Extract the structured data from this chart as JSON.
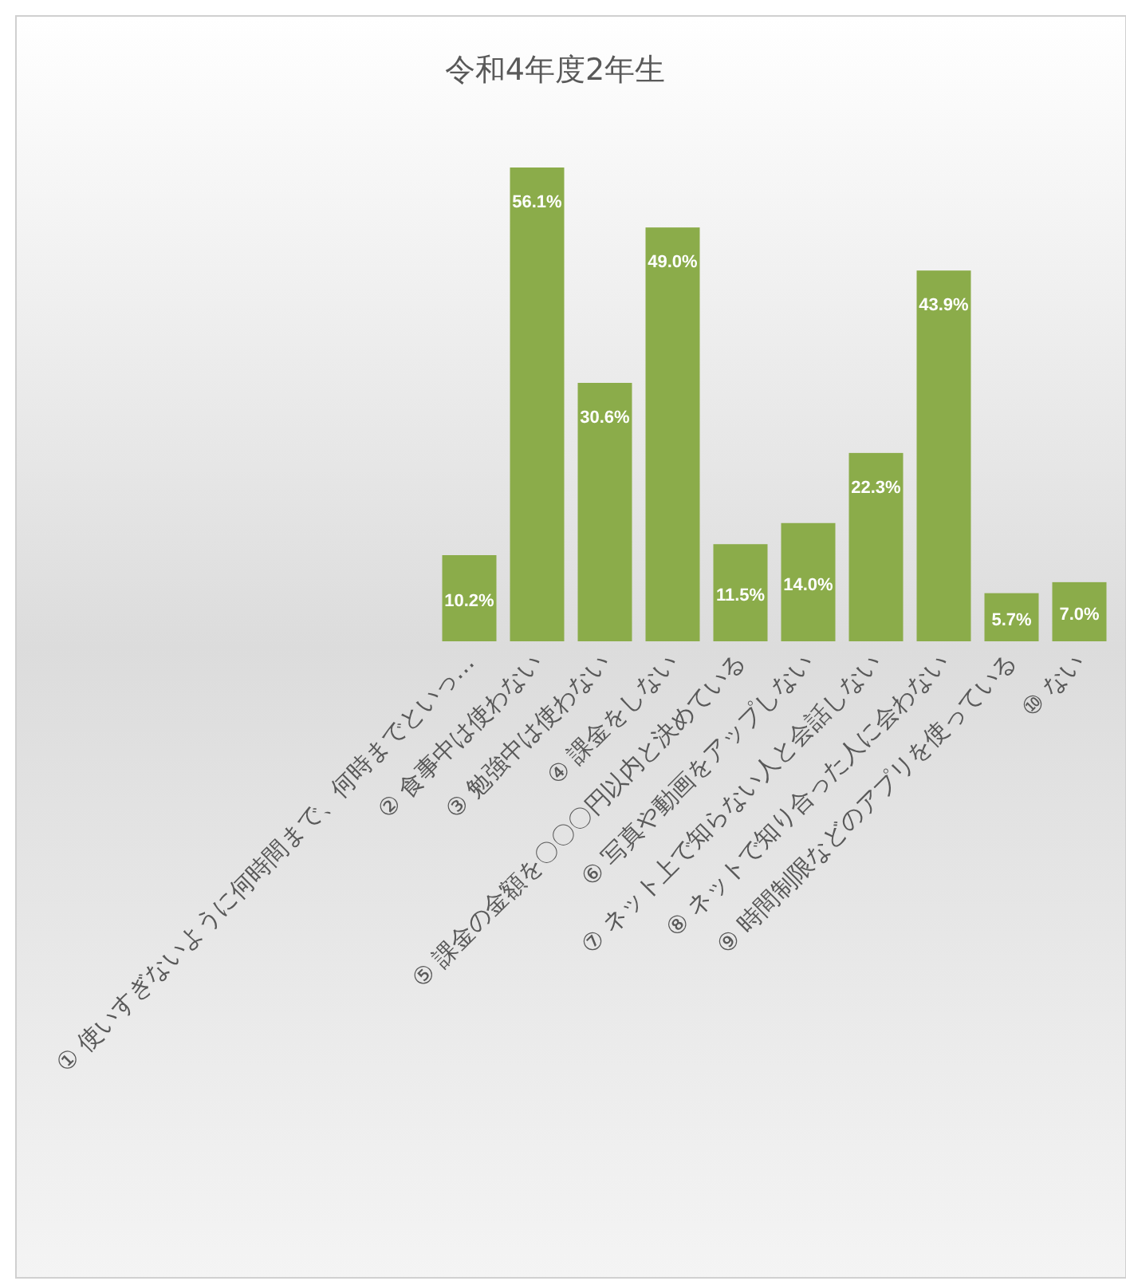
{
  "chart_data": {
    "type": "bar",
    "title": "令和4年度2年生",
    "categories": [
      "① 使いすぎないように何時間まで、何時までといっ…",
      "② 食事中は使わない",
      "③ 勉強中は使わない",
      "④ 課金をしない",
      "⑤ 課金の金額を〇〇〇円以内と決めている",
      "⑥ 写真や動画をアップしない",
      "⑦ ネット上で知らない人と会話しない",
      "⑧ ネットで知り合った人に会わない",
      "⑨ 時間制限などのアプリを使っている",
      "⑩ ない"
    ],
    "values": [
      10.2,
      56.1,
      30.6,
      49.0,
      11.5,
      14.0,
      22.3,
      43.9,
      5.7,
      7.0
    ],
    "value_labels": [
      "10.2%",
      "56.1%",
      "30.6%",
      "49.0%",
      "11.5%",
      "14.0%",
      "22.3%",
      "43.9%",
      "5.7%",
      "7.0%"
    ],
    "color": "#8bac4a"
  }
}
